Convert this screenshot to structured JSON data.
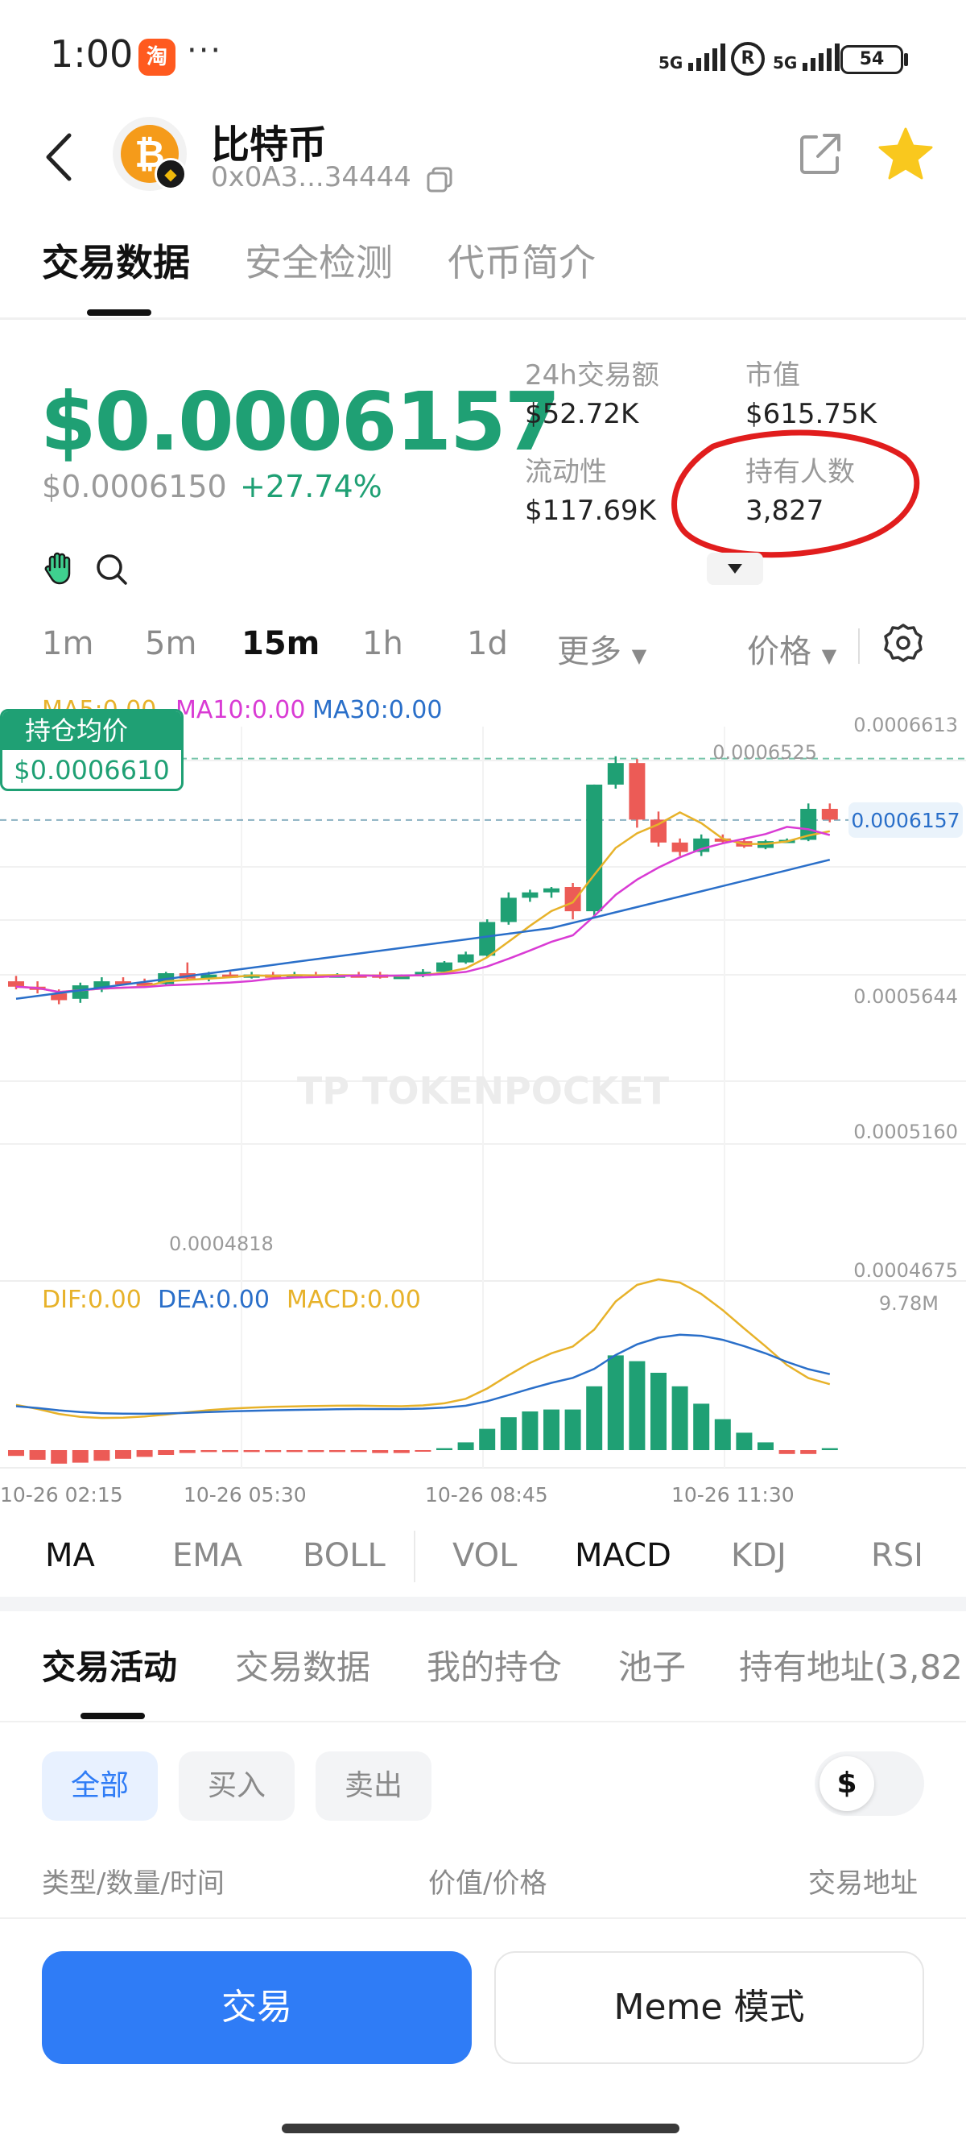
{
  "status_bar": {
    "time": "1:00",
    "taobao": "淘",
    "more": "···",
    "net1": "5G",
    "net2": "5G",
    "r_badge": "R",
    "battery": "54"
  },
  "header": {
    "coin_logo_symbol": "₿",
    "chain_badge": "◆",
    "title": "比特币",
    "address": "0x0A3...34444"
  },
  "tabs_top": [
    "交易数据",
    "安全检测",
    "代币简介"
  ],
  "price": {
    "current": "$0.0006157",
    "reference": "$0.0006150",
    "change": "+27.74%"
  },
  "stats": {
    "volume_24h_label": "24h交易额",
    "volume_24h": "$52.72K",
    "market_cap_label": "市值",
    "market_cap": "$615.75K",
    "liquidity_label": "流动性",
    "liquidity": "$117.69K",
    "holders_label": "持有人数",
    "holders": "3,827"
  },
  "intervals": [
    "1m",
    "5m",
    "15m",
    "1h",
    "1d"
  ],
  "interval_more": "更多",
  "price_mode": "价格",
  "chart_data": {
    "type": "candlestick",
    "interval": "15m",
    "ma_legend": {
      "ma5": "MA5:0.00",
      "ma10": "MA10:0.00",
      "ma30": "MA30:0.00"
    },
    "avg_position": {
      "label": "持仓均价",
      "value": "$0.0006610"
    },
    "y_tick_labels": [
      "0.0006613",
      "0.0005644",
      "0.0005160",
      "0.0004675"
    ],
    "current_price_tag": "0.0006157",
    "high_marker": "0.0006525",
    "low_marker": "0.0004818",
    "x_tick_labels": [
      "10-26 02:15",
      "10-26 05:30",
      "10-26 08:45",
      "10-26 11:30"
    ],
    "volume_max_label": "9.78M",
    "macd_legend": {
      "dif": "DIF:0.00",
      "dea": "DEA:0.00",
      "macd": "MACD:0.00"
    },
    "ylim": [
      0.000447,
      0.000685
    ],
    "candles": [
      {
        "o": 0.000496,
        "h": 0.0005,
        "l": 0.00049,
        "c": 0.000492
      },
      {
        "o": 0.000492,
        "h": 0.000496,
        "l": 0.000487,
        "c": 0.00049
      },
      {
        "o": 0.000487,
        "h": 0.00049,
        "l": 0.000479,
        "c": 0.000482
      },
      {
        "o": 0.000483,
        "h": 0.000495,
        "l": 0.00048,
        "c": 0.000493
      },
      {
        "o": 0.00049,
        "h": 0.000499,
        "l": 0.000488,
        "c": 0.000496
      },
      {
        "o": 0.000496,
        "h": 0.000499,
        "l": 0.000493,
        "c": 0.000495
      },
      {
        "o": 0.000495,
        "h": 0.000498,
        "l": 0.000493,
        "c": 0.000494
      },
      {
        "o": 0.000494,
        "h": 0.000503,
        "l": 0.000493,
        "c": 0.000502
      },
      {
        "o": 0.000502,
        "h": 0.00051,
        "l": 0.000497,
        "c": 0.000498
      },
      {
        "o": 0.000498,
        "h": 0.000503,
        "l": 0.000496,
        "c": 0.000501
      },
      {
        "o": 0.000501,
        "h": 0.000503,
        "l": 0.000499,
        "c": 0.0005
      },
      {
        "o": 0.0005,
        "h": 0.000503,
        "l": 0.000498,
        "c": 0.000501
      },
      {
        "o": 0.000501,
        "h": 0.000503,
        "l": 0.000499,
        "c": 0.0005
      },
      {
        "o": 0.0005,
        "h": 0.000503,
        "l": 0.000499,
        "c": 0.000501
      },
      {
        "o": 0.000501,
        "h": 0.000503,
        "l": 0.000499,
        "c": 0.0005
      },
      {
        "o": 0.0005,
        "h": 0.000502,
        "l": 0.000499,
        "c": 0.000501
      },
      {
        "o": 0.000501,
        "h": 0.000503,
        "l": 0.000499,
        "c": 0.0005
      },
      {
        "o": 0.000501,
        "h": 0.000503,
        "l": 0.000498,
        "c": 0.000499
      },
      {
        "o": 0.000499,
        "h": 0.000501,
        "l": 0.000498,
        "c": 0.0005
      },
      {
        "o": 0.0005,
        "h": 0.000505,
        "l": 0.000499,
        "c": 0.000503
      },
      {
        "o": 0.000503,
        "h": 0.000511,
        "l": 0.000502,
        "c": 0.00051
      },
      {
        "o": 0.00051,
        "h": 0.000518,
        "l": 0.000509,
        "c": 0.000516
      },
      {
        "o": 0.000515,
        "h": 0.000542,
        "l": 0.000514,
        "c": 0.00054
      },
      {
        "o": 0.00054,
        "h": 0.000562,
        "l": 0.000538,
        "c": 0.000558
      },
      {
        "o": 0.000558,
        "h": 0.000564,
        "l": 0.000555,
        "c": 0.000562
      },
      {
        "o": 0.000562,
        "h": 0.000566,
        "l": 0.000558,
        "c": 0.000565
      },
      {
        "o": 0.000566,
        "h": 0.000569,
        "l": 0.000542,
        "c": 0.000548
      },
      {
        "o": 0.000548,
        "h": 0.000642,
        "l": 0.000543,
        "c": 0.000642
      },
      {
        "o": 0.000642,
        "h": 0.000663,
        "l": 0.000639,
        "c": 0.000658
      },
      {
        "o": 0.000658,
        "h": 0.000661,
        "l": 0.00061,
        "c": 0.000616
      },
      {
        "o": 0.000616,
        "h": 0.000622,
        "l": 0.000596,
        "c": 0.000599
      },
      {
        "o": 0.000599,
        "h": 0.000602,
        "l": 0.000589,
        "c": 0.000592
      },
      {
        "o": 0.000592,
        "h": 0.000605,
        "l": 0.000589,
        "c": 0.000602
      },
      {
        "o": 0.000602,
        "h": 0.000605,
        "l": 0.000599,
        "c": 0.0006
      },
      {
        "o": 0.0006,
        "h": 0.000602,
        "l": 0.000595,
        "c": 0.000596
      },
      {
        "o": 0.000595,
        "h": 0.000601,
        "l": 0.000594,
        "c": 0.0006
      },
      {
        "o": 0.0006,
        "h": 0.000602,
        "l": 0.000599,
        "c": 0.000601
      },
      {
        "o": 0.000601,
        "h": 0.000628,
        "l": 0.0006,
        "c": 0.000624
      },
      {
        "o": 0.000624,
        "h": 0.000628,
        "l": 0.000614,
        "c": 0.000616
      }
    ],
    "macd_hist": [
      -0.06,
      -0.1,
      -0.14,
      -0.13,
      -0.11,
      -0.09,
      -0.07,
      -0.05,
      -0.03,
      -0.02,
      -0.02,
      -0.02,
      -0.02,
      -0.02,
      -0.02,
      -0.02,
      -0.02,
      -0.03,
      -0.03,
      -0.01,
      0.02,
      0.08,
      0.22,
      0.34,
      0.4,
      0.42,
      0.42,
      0.66,
      0.98,
      0.92,
      0.8,
      0.66,
      0.48,
      0.32,
      0.18,
      0.08,
      -0.04,
      -0.04,
      0.02
    ]
  },
  "indicator_tabs": [
    "MA",
    "EMA",
    "BOLL",
    "VOL",
    "MACD",
    "KDJ",
    "RSI"
  ],
  "tabs_bottom": [
    "交易活动",
    "交易数据",
    "我的持仓",
    "池子",
    "持有地址(3,82"
  ],
  "filters": [
    "全部",
    "买入",
    "卖出"
  ],
  "currency_symbol": "$",
  "columns": {
    "type": "类型/数量/时间",
    "value": "价值/价格",
    "address": "交易地址"
  },
  "actions": {
    "trade": "交易",
    "meme": "Meme 模式"
  },
  "colors": {
    "up": "#1fa074",
    "down": "#ec5b56",
    "accent": "#2f7cf6",
    "ma5": "#e7b22a",
    "ma10": "#d93bd4",
    "ma30": "#2a6fc9",
    "annotation": "#e11d1d"
  }
}
